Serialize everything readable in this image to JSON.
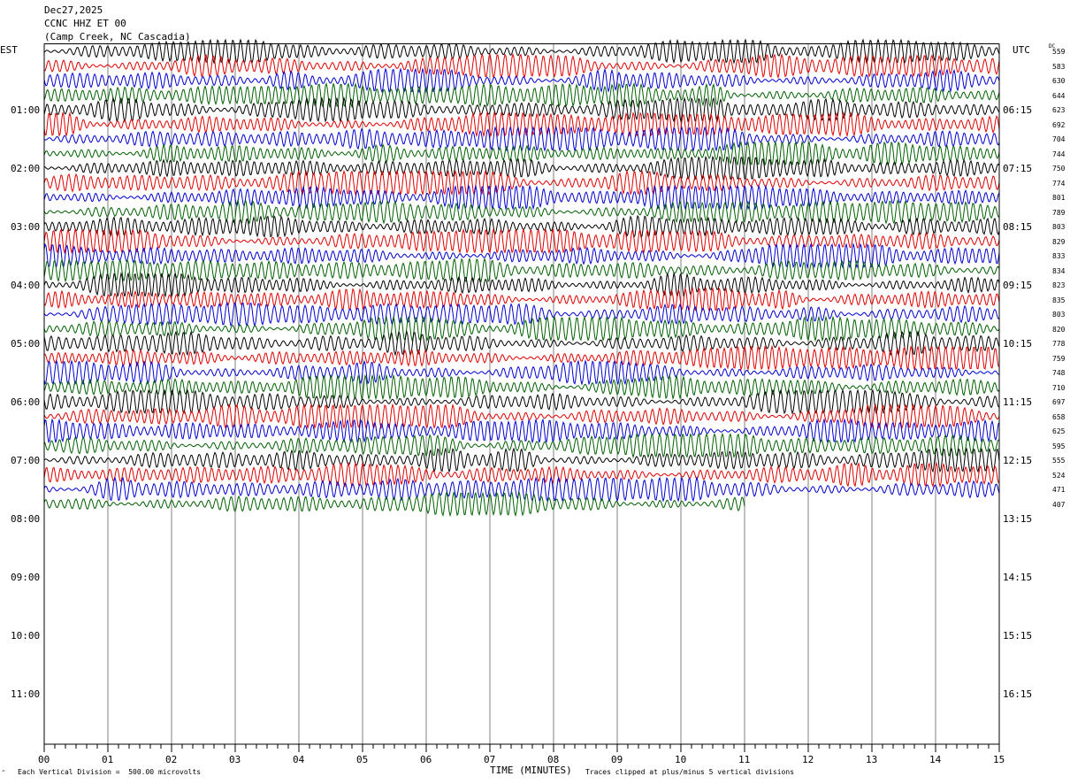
{
  "header": {
    "date": "Dec27,2025",
    "station": "CCNC HHZ ET 00",
    "location": "(Camp Creek, NC Cascadia)"
  },
  "labels": {
    "left_timezone": "EST",
    "right_timezone": "UTC",
    "dc_header": "DC",
    "x_title": "TIME (MINUTES)",
    "scale_note": "Each Vertical Division =  500.00 microvolts",
    "clip_note": "Traces clipped at plus/minus 5 vertical divisions",
    "corner_mark": "^"
  },
  "chart_data": {
    "type": "line",
    "title": "",
    "xlabel": "TIME (MINUTES)",
    "ylabel": "",
    "xlim": [
      0,
      15
    ],
    "x_ticks": [
      "00",
      "01",
      "02",
      "03",
      "04",
      "05",
      "06",
      "07",
      "08",
      "09",
      "10",
      "11",
      "12",
      "13",
      "14",
      "15"
    ],
    "left_hour_labels": [
      "01:00",
      "02:00",
      "03:00",
      "04:00",
      "05:00",
      "06:00",
      "07:00",
      "08:00",
      "09:00",
      "10:00",
      "11:00"
    ],
    "right_hour_labels": [
      "06:15",
      "07:15",
      "08:15",
      "09:15",
      "10:15",
      "11:15",
      "12:15",
      "13:15",
      "14:15",
      "15:15",
      "16:15"
    ],
    "rows_per_hour": 4,
    "total_rows": 48,
    "trace_colors": [
      "#000000",
      "#e00000",
      "#0000d0",
      "#006000"
    ],
    "dc_offsets": [
      559,
      583,
      630,
      644,
      623,
      692,
      704,
      744,
      750,
      774,
      801,
      789,
      803,
      829,
      833,
      834,
      823,
      835,
      803,
      820,
      778,
      759,
      748,
      710,
      697,
      658,
      625,
      595,
      555,
      524,
      471,
      407
    ],
    "last_trace_end_minute": 11,
    "grid": true
  }
}
